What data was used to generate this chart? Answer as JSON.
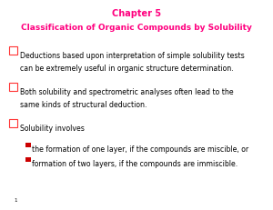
{
  "title_line1": "Chapter 5",
  "title_line2": "Classification of Organic Compounds by Solubility",
  "title_color": "#FF007F",
  "background_color": "#FFFFFF",
  "checkbox_color": "#FF3333",
  "sub_bullet_color": "#CC0000",
  "text_color": "#000000",
  "bullet1_line1": "Deductions based upon interpretation of simple solubility tests",
  "bullet1_line2": "can be extremely useful in organic structure determination.",
  "bullet2_line1": "Both solubility and spectrometric analyses often lead to the",
  "bullet2_line2": "same kinds of structural deduction.",
  "bullet3_line1": "Solubility involves",
  "sub_bullet1": "the formation of one layer, if the compounds are miscible, or",
  "sub_bullet2": "formation of two layers, if the compounds are immiscible.",
  "page_number": "1",
  "figw": 3.0,
  "figh": 2.31,
  "dpi": 100
}
